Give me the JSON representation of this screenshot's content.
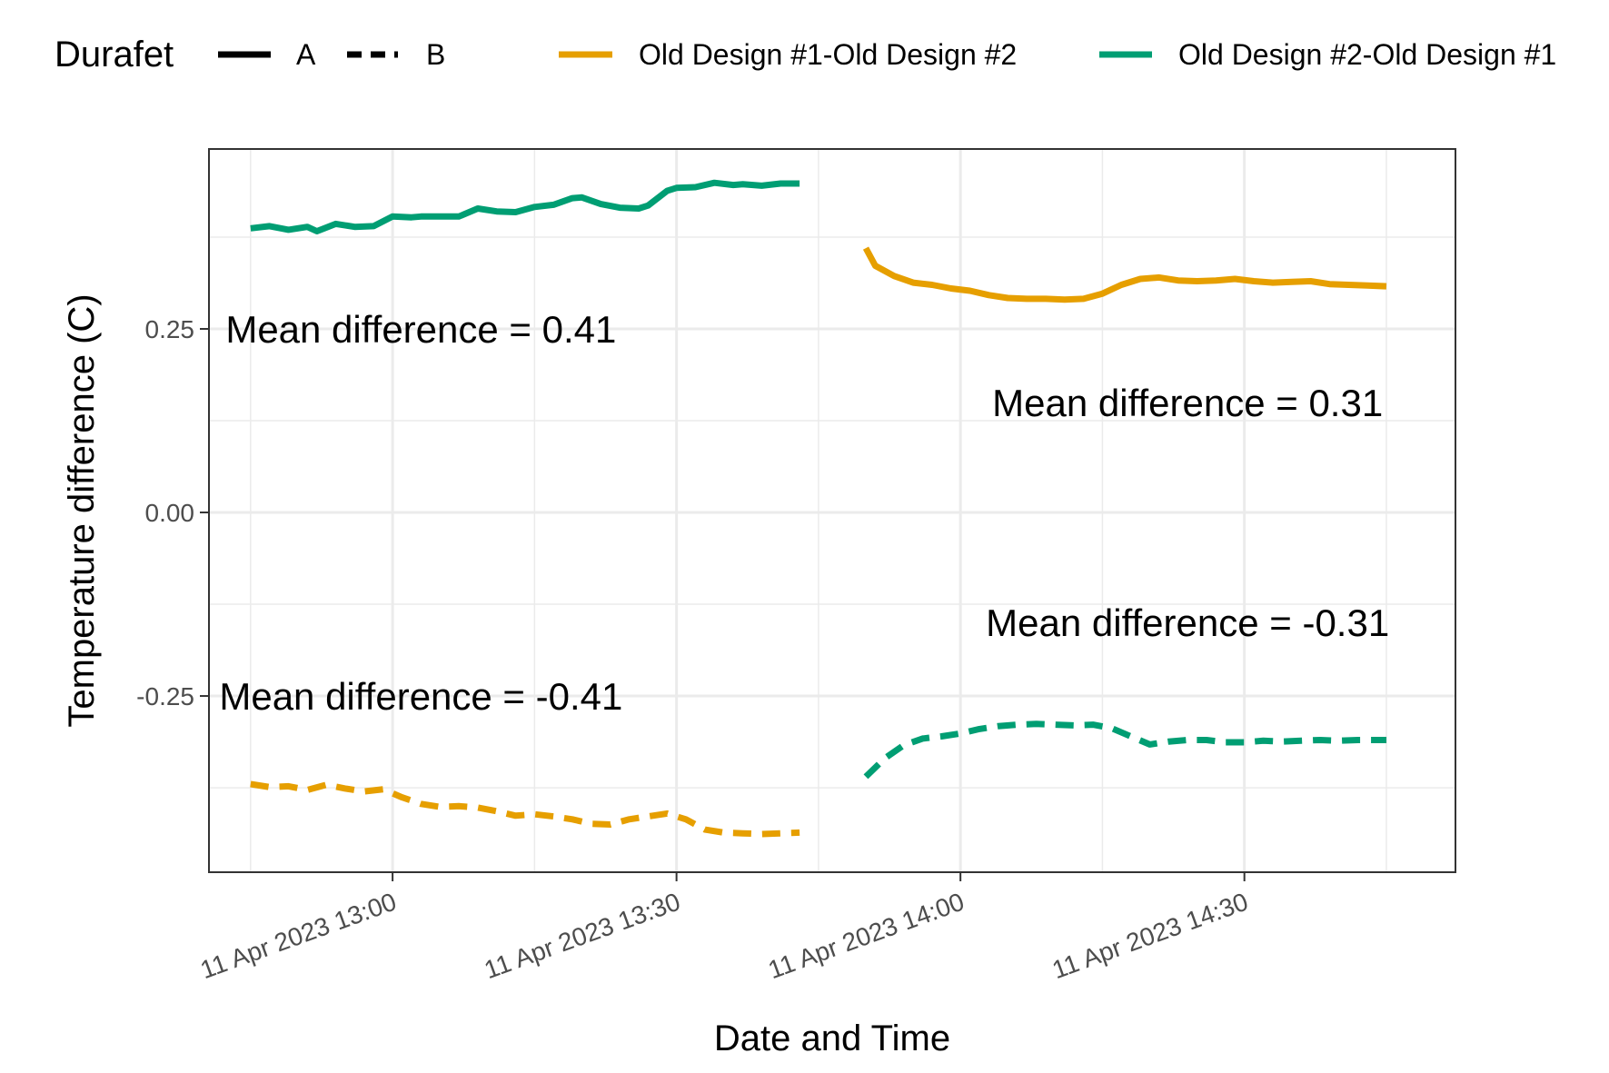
{
  "chart_data": {
    "type": "line",
    "xlabel": "Date and Time",
    "ylabel": "Temperature difference (C)",
    "x_ticks": [
      "11 Apr 2023 13:00",
      "11 Apr 2023 13:30",
      "11 Apr 2023 14:00",
      "11 Apr 2023 14:30"
    ],
    "x_tick_minutes": [
      0,
      30,
      60,
      90
    ],
    "xlim": [
      "11 Apr 2023 12:45",
      "11 Apr 2023 14:55"
    ],
    "y_ticks": [
      0.25,
      0.0,
      -0.25
    ],
    "y_tick_labels": [
      "0.25",
      "0.00",
      "-0.25"
    ],
    "ylim": [
      -0.49,
      0.495
    ],
    "grid": true,
    "legend": {
      "position": "top",
      "linetype_title": "Durafet",
      "linetype_entries": [
        {
          "label": "A",
          "dash": "solid"
        },
        {
          "label": "B",
          "dash": "dashed"
        }
      ],
      "color_entries": [
        {
          "label": "Old Design #1-Old Design #2",
          "color": "#E69F00"
        },
        {
          "label": "Old Design #2-Old Design #1",
          "color": "#009E73"
        }
      ]
    },
    "series": [
      {
        "name": "Old Design #2-Old Design #1",
        "durafet": "A",
        "color": "#009E73",
        "dash": "solid",
        "x_minutes": [
          -15,
          -13,
          -11,
          -9,
          -8,
          -6,
          -4,
          -2,
          0,
          2,
          3,
          5,
          7,
          9,
          11,
          13,
          15,
          17,
          19,
          20,
          22,
          24,
          26,
          27,
          29,
          30,
          32,
          34,
          36,
          37,
          39,
          41,
          43
        ],
        "y": [
          0.387,
          0.39,
          0.385,
          0.389,
          0.383,
          0.393,
          0.389,
          0.39,
          0.403,
          0.402,
          0.403,
          0.403,
          0.403,
          0.414,
          0.41,
          0.409,
          0.416,
          0.419,
          0.428,
          0.429,
          0.42,
          0.415,
          0.414,
          0.418,
          0.438,
          0.442,
          0.443,
          0.449,
          0.446,
          0.447,
          0.445,
          0.448,
          0.448
        ]
      },
      {
        "name": "Old Design #1-Old Design #2",
        "durafet": "A",
        "color": "#E69F00",
        "dash": "solid",
        "x_minutes": [
          50,
          51,
          53,
          55,
          57,
          59,
          61,
          63,
          65,
          67,
          69,
          71,
          73,
          75,
          77,
          79,
          81,
          83,
          85,
          87,
          89,
          91,
          93,
          95,
          97,
          99,
          101,
          103,
          105
        ],
        "y": [
          0.36,
          0.336,
          0.322,
          0.313,
          0.31,
          0.305,
          0.302,
          0.296,
          0.292,
          0.291,
          0.291,
          0.29,
          0.291,
          0.298,
          0.31,
          0.318,
          0.32,
          0.316,
          0.315,
          0.316,
          0.318,
          0.315,
          0.313,
          0.314,
          0.315,
          0.311,
          0.31,
          0.309,
          0.308
        ]
      },
      {
        "name": "Old Design #1-Old Design #2",
        "durafet": "B",
        "color": "#E69F00",
        "dash": "dashed",
        "x_minutes": [
          -15,
          -13,
          -11,
          -9,
          -7,
          -5,
          -3,
          -1,
          1,
          3,
          5,
          7,
          9,
          11,
          13,
          15,
          17,
          19,
          21,
          23,
          25,
          27,
          29,
          31,
          33,
          35,
          37,
          39,
          41,
          43
        ],
        "y": [
          -0.37,
          -0.374,
          -0.373,
          -0.378,
          -0.371,
          -0.376,
          -0.38,
          -0.377,
          -0.388,
          -0.397,
          -0.401,
          -0.4,
          -0.402,
          -0.407,
          -0.413,
          -0.411,
          -0.414,
          -0.418,
          -0.424,
          -0.425,
          -0.418,
          -0.414,
          -0.41,
          -0.418,
          -0.432,
          -0.436,
          -0.437,
          -0.438,
          -0.437,
          -0.436
        ]
      },
      {
        "name": "Old Design #2-Old Design #1",
        "durafet": "B",
        "color": "#009E73",
        "dash": "dashed",
        "x_minutes": [
          50,
          52,
          54,
          56,
          58,
          60,
          62,
          64,
          66,
          68,
          70,
          72,
          74,
          76,
          78,
          80,
          82,
          84,
          86,
          88,
          90,
          92,
          94,
          96,
          98,
          100,
          102,
          105
        ],
        "y": [
          -0.36,
          -0.335,
          -0.317,
          -0.308,
          -0.305,
          -0.301,
          -0.295,
          -0.291,
          -0.289,
          -0.288,
          -0.289,
          -0.29,
          -0.289,
          -0.294,
          -0.305,
          -0.316,
          -0.312,
          -0.31,
          -0.31,
          -0.313,
          -0.313,
          -0.311,
          -0.312,
          -0.311,
          -0.31,
          -0.311,
          -0.31,
          -0.31
        ]
      }
    ],
    "annotations": [
      {
        "text": "Mean difference = 0.41",
        "x_minutes": 3,
        "y": 0.25
      },
      {
        "text": "Mean difference = 0.31",
        "x_minutes": 84,
        "y": 0.15
      },
      {
        "text": "Mean difference = -0.31",
        "x_minutes": 84,
        "y": -0.15
      },
      {
        "text": "Mean difference = -0.41",
        "x_minutes": 3,
        "y": -0.25
      }
    ]
  }
}
